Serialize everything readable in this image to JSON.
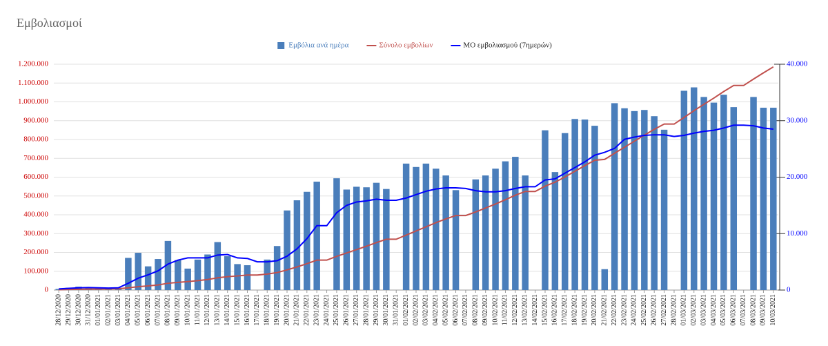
{
  "chart_data": {
    "type": "combo",
    "title": "Εμβολιασμοί",
    "categories": [
      "28/12/2020",
      "29/12/2020",
      "30/12/2020",
      "31/12/2020",
      "01/01/2021",
      "02/01/2021",
      "03/01/2021",
      "04/01/2021",
      "05/01/2021",
      "06/01/2021",
      "07/01/2021",
      "08/01/2021",
      "09/01/2021",
      "10/01/2021",
      "11/01/2021",
      "12/01/2021",
      "13/01/2021",
      "14/01/2021",
      "15/01/2021",
      "16/01/2021",
      "17/01/2021",
      "18/01/2021",
      "19/01/2021",
      "20/01/2021",
      "21/01/2021",
      "22/01/2021",
      "23/01/2021",
      "24/01/2021",
      "25/01/2021",
      "26/01/2021",
      "27/01/2021",
      "28/01/2021",
      "29/01/2021",
      "30/01/2021",
      "31/01/2021",
      "01/02/2021",
      "02/02/2021",
      "03/02/2021",
      "04/02/2021",
      "05/02/2021",
      "06/02/2021",
      "07/02/2021",
      "08/02/2021",
      "09/02/2021",
      "10/02/2021",
      "11/02/2021",
      "12/02/2021",
      "13/02/2021",
      "14/02/2021",
      "15/02/2021",
      "16/02/2021",
      "17/02/2021",
      "18/02/2021",
      "19/02/2021",
      "20/02/2021",
      "21/02/2021",
      "22/02/2021",
      "23/02/2021",
      "24/02/2021",
      "25/02/2021",
      "26/02/2021",
      "27/02/2021",
      "28/02/2021",
      "01/03/2021",
      "02/03/2021",
      "03/03/2021",
      "04/03/2021",
      "05/03/2021",
      "06/03/2021",
      "07/03/2021",
      "08/03/2021",
      "09/03/2021",
      "10/03/2021"
    ],
    "series": [
      {
        "name": "Εμβόλια ανά ημέρα",
        "type": "bar",
        "axis": "y2",
        "color": "#4a7ebb",
        "values": [
          200,
          400,
          600,
          500,
          300,
          200,
          400,
          5700,
          6600,
          4200,
          5500,
          8700,
          5300,
          3800,
          5400,
          6300,
          8500,
          6000,
          4600,
          4400,
          null,
          5400,
          7800,
          14100,
          15900,
          17400,
          19200,
          null,
          19800,
          17800,
          18300,
          18200,
          19000,
          17900,
          null,
          22400,
          21800,
          22400,
          21500,
          20300,
          17700,
          null,
          19600,
          20300,
          21500,
          22800,
          23600,
          20300,
          null,
          28300,
          20900,
          27800,
          30300,
          30200,
          29100,
          3700,
          33100,
          32200,
          31700,
          31900,
          30800,
          28400,
          null,
          35300,
          35900,
          34200,
          33200,
          34600,
          32400,
          null,
          34200,
          32300,
          32300
        ]
      },
      {
        "name": "Σύνολο εμβολίων",
        "type": "line",
        "color": "#c0504d",
        "values": [
          2000,
          3000,
          4000,
          5000,
          5500,
          6000,
          7000,
          12000,
          18000,
          22000,
          27000,
          36000,
          41000,
          45000,
          50000,
          56000,
          65000,
          71000,
          75000,
          80000,
          80000,
          85000,
          93000,
          107000,
          123000,
          140000,
          159000,
          159000,
          179000,
          197000,
          215000,
          233000,
          252000,
          270000,
          270000,
          292000,
          314000,
          336000,
          358000,
          378000,
          396000,
          396000,
          415000,
          436000,
          457000,
          480000,
          504000,
          524000,
          524000,
          552000,
          573000,
          601000,
          631000,
          661000,
          690000,
          694000,
          727000,
          759000,
          791000,
          823000,
          854000,
          882000,
          882000,
          917000,
          953000,
          987000,
          1020000,
          1055000,
          1087000,
          1087000,
          1121000,
          1154000,
          1186000
        ]
      },
      {
        "name": "ΜΟ εμβολιασμού (7ημερών)",
        "type": "line",
        "axis": "y2",
        "color": "#0000ff",
        "values": [
          200,
          300,
          400,
          450,
          400,
          350,
          400,
          1200,
          2100,
          2700,
          3400,
          4600,
          5300,
          5700,
          5700,
          5700,
          6200,
          6300,
          5700,
          5600,
          5000,
          5000,
          5200,
          6000,
          7300,
          9100,
          11400,
          11400,
          13700,
          15000,
          15600,
          15800,
          16100,
          15900,
          15900,
          16300,
          16900,
          17500,
          17900,
          18100,
          18100,
          18000,
          17600,
          17400,
          17400,
          17600,
          18000,
          18300,
          18300,
          19500,
          19700,
          20700,
          21700,
          22700,
          23900,
          24400,
          25100,
          26700,
          27100,
          27400,
          27500,
          27500,
          27200,
          27400,
          27800,
          28100,
          28300,
          28700,
          29200,
          29200,
          29100,
          28700,
          28500
        ]
      }
    ],
    "ylim": [
      0,
      1200000
    ],
    "yticks": [
      0,
      {
        "value": 100000,
        "label": "100.000"
      },
      {
        "value": 200000,
        "label": "200.000"
      },
      {
        "value": 300000,
        "label": "300.000"
      },
      {
        "value": 400000,
        "label": "400.000"
      },
      {
        "value": 500000,
        "label": "500.000"
      },
      {
        "value": 600000,
        "label": "600.000"
      },
      {
        "value": 700000,
        "label": "700.000"
      },
      {
        "value": 800000,
        "label": "800.000"
      },
      {
        "value": 900000,
        "label": "900.000"
      },
      {
        "value": 1000000,
        "label": "1.000.000"
      },
      {
        "value": 1100000,
        "label": "1.100.000"
      },
      {
        "value": 1200000,
        "label": "1.200.000"
      }
    ],
    "y2lim": [
      0,
      40000
    ],
    "y2ticks": [
      0,
      {
        "value": 10000,
        "label": "10.000"
      },
      {
        "value": 20000,
        "label": "20.000"
      },
      {
        "value": 30000,
        "label": "30.000"
      },
      {
        "value": 40000,
        "label": "40.000"
      }
    ],
    "ytick_color": "#cc0000",
    "y2tick_color": "#0000ff",
    "grid": true
  }
}
